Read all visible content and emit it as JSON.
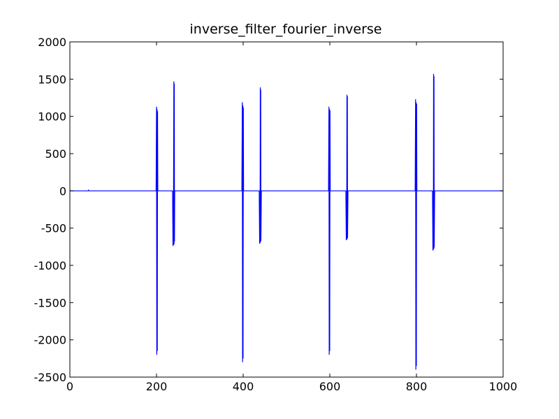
{
  "chart_data": {
    "type": "line",
    "title": "inverse_filter_fourier_inverse",
    "xlabel": "",
    "ylabel": "",
    "xlim": [
      0,
      1000
    ],
    "ylim": [
      -2500,
      2000
    ],
    "xticks": [
      0,
      200,
      400,
      600,
      800,
      1000
    ],
    "yticks": [
      2000,
      1500,
      1000,
      500,
      0,
      -500,
      -1000,
      -1500,
      -2000,
      -2500
    ],
    "grid": false,
    "legend": "none",
    "series": [
      {
        "color": "#0000ff",
        "x": [
          0,
          42,
          43,
          44,
          199,
          200,
          200.6,
          201.2,
          201.8,
          202.4,
          203,
          204,
          237,
          238,
          239,
          240,
          240.5,
          241,
          241.5,
          242,
          243,
          397,
          398,
          398.6,
          399.2,
          399.8,
          400.4,
          401,
          402,
          437,
          438,
          439,
          439.5,
          440,
          440.5,
          441,
          442,
          597,
          598,
          598.6,
          599.2,
          599.8,
          600.4,
          601,
          602,
          637,
          638,
          639,
          639.5,
          640,
          640.5,
          641,
          642,
          797,
          798,
          798.6,
          799.2,
          799.8,
          800.4,
          801,
          802,
          837,
          838,
          839,
          839.5,
          840,
          840.5,
          841,
          842,
          1000
        ],
        "y": [
          0,
          0,
          10,
          0,
          0,
          1130,
          -2200,
          1100,
          -2150,
          1070,
          0,
          0,
          0,
          -740,
          -700,
          1470,
          -720,
          1440,
          -680,
          0,
          0,
          0,
          1190,
          -2300,
          1150,
          -2250,
          1120,
          0,
          0,
          0,
          -710,
          -680,
          1390,
          -690,
          1360,
          -670,
          0,
          0,
          1130,
          -2200,
          1100,
          -2150,
          1080,
          0,
          0,
          0,
          -660,
          -640,
          1290,
          -650,
          1270,
          -630,
          0,
          0,
          1230,
          -2400,
          1190,
          -2350,
          1170,
          0,
          0,
          0,
          -800,
          -770,
          1570,
          -780,
          1540,
          -760,
          0,
          0
        ]
      }
    ]
  }
}
